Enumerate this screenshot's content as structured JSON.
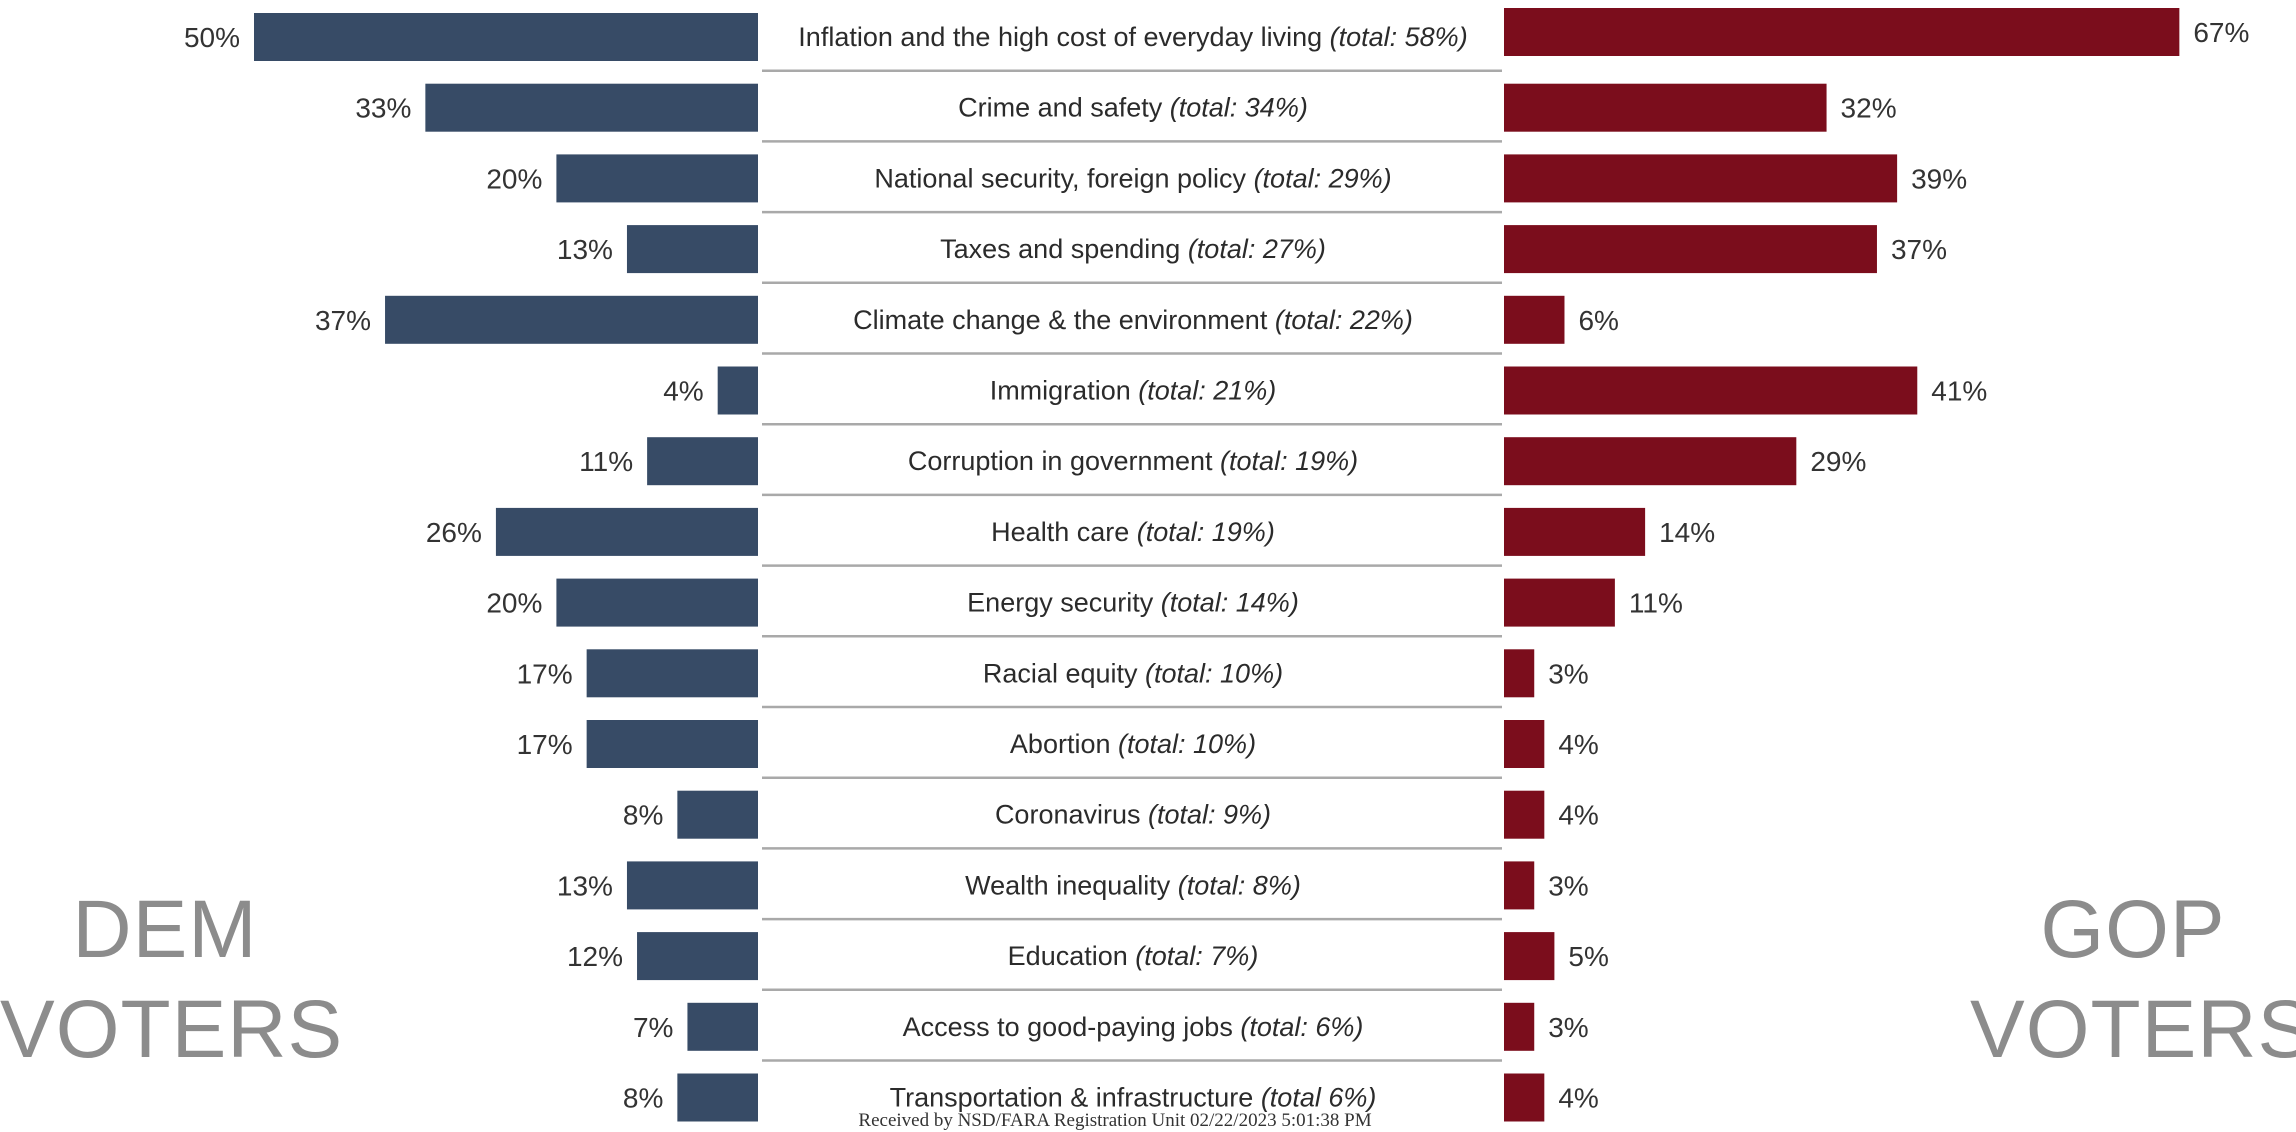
{
  "chart_data": {
    "type": "bar",
    "categories": [
      {
        "label": "Inflation and the high cost of everyday living",
        "total": "(total: 58%)"
      },
      {
        "label": "Crime and safety",
        "total": "(total: 34%)"
      },
      {
        "label": "National security, foreign policy",
        "total": "(total: 29%)"
      },
      {
        "label": "Taxes and spending",
        "total": "(total: 27%)"
      },
      {
        "label": "Climate change & the environment",
        "total": "(total: 22%)"
      },
      {
        "label": "Immigration",
        "total": "(total: 21%)"
      },
      {
        "label": "Corruption in government",
        "total": "(total: 19%)"
      },
      {
        "label": "Health care",
        "total": "(total: 19%)"
      },
      {
        "label": "Energy security",
        "total": "(total: 14%)"
      },
      {
        "label": "Racial equity",
        "total": "(total: 10%)"
      },
      {
        "label": "Abortion",
        "total": "(total: 10%)"
      },
      {
        "label": "Coronavirus",
        "total": "(total: 9%)"
      },
      {
        "label": "Wealth inequality",
        "total": "(total: 8%)"
      },
      {
        "label": "Education",
        "total": "(total: 7%)"
      },
      {
        "label": "Access to good-paying jobs",
        "total": "(total: 6%)"
      },
      {
        "label": "Transportation & infrastructure",
        "total": "(total 6%)"
      }
    ],
    "series": [
      {
        "name": "DEM VOTERS",
        "color": "#374b66",
        "values": [
          50,
          33,
          20,
          13,
          37,
          4,
          11,
          26,
          20,
          17,
          17,
          8,
          13,
          12,
          7,
          8
        ],
        "value_labels": [
          "50%",
          "33%",
          "20%",
          "13%",
          "37%",
          "4%",
          "11%",
          "26%",
          "20%",
          "17%",
          "17%",
          "8%",
          "13%",
          "12%",
          "7%",
          "8%"
        ]
      },
      {
        "name": "GOP VOTERS",
        "color": "#7b0d1c",
        "values": [
          67,
          32,
          39,
          37,
          6,
          41,
          29,
          14,
          11,
          3,
          4,
          4,
          3,
          5,
          3,
          4
        ],
        "value_labels": [
          "67%",
          "32%",
          "39%",
          "37%",
          "6%",
          "41%",
          "29%",
          "14%",
          "11%",
          "3%",
          "4%",
          "4%",
          "3%",
          "5%",
          "3%",
          "4%"
        ]
      }
    ],
    "xlim": [
      0,
      67
    ],
    "grid": false,
    "legend": "side labels, left and right"
  },
  "labels": {
    "dem_line1": "DEM",
    "dem_line2": "VOTERS",
    "gop_line1": "GOP",
    "gop_line2": "VOTERS"
  },
  "footer": {
    "stamp": "Received by NSD/FARA Registration Unit 02/22/2023 5:01:38 PM"
  }
}
